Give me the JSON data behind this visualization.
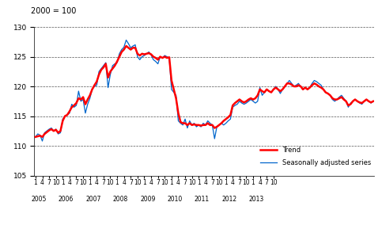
{
  "ylabel_text": "2000 = 100",
  "ylim": [
    105,
    130
  ],
  "yticks": [
    105,
    110,
    115,
    120,
    125,
    130
  ],
  "trend_color": "#FF0000",
  "seasonal_color": "#0066CC",
  "trend_lw": 1.8,
  "seasonal_lw": 0.9,
  "legend_trend": "Trend",
  "legend_seasonal": "Seasonally adjusted series",
  "background_color": "#FFFFFF",
  "grid_color": "#555555",
  "start_year": 2005,
  "seasonal_values": [
    111.5,
    112.0,
    111.8,
    110.8,
    112.2,
    112.5,
    112.8,
    113.0,
    112.5,
    112.8,
    112.0,
    112.2,
    114.5,
    115.0,
    115.2,
    115.5,
    117.0,
    116.5,
    116.8,
    119.2,
    117.5,
    117.8,
    115.5,
    117.0,
    118.0,
    119.5,
    120.0,
    120.2,
    122.5,
    123.0,
    123.5,
    124.0,
    119.8,
    122.0,
    123.5,
    123.8,
    124.0,
    125.5,
    126.2,
    126.6,
    127.8,
    127.2,
    126.5,
    126.8,
    127.0,
    125.0,
    124.5,
    125.0,
    125.2,
    125.5,
    125.8,
    125.3,
    124.5,
    124.2,
    123.8,
    125.0,
    124.8,
    125.2,
    125.0,
    124.8,
    119.5,
    119.0,
    118.5,
    114.2,
    113.8,
    113.5,
    114.5,
    113.0,
    114.2,
    113.5,
    113.8,
    113.2,
    113.5,
    113.2,
    113.8,
    113.5,
    114.2,
    113.8,
    113.5,
    111.2,
    113.2,
    113.5,
    113.8,
    113.5,
    113.8,
    114.2,
    114.5,
    116.5,
    116.8,
    117.0,
    117.5,
    117.2,
    117.0,
    117.2,
    117.5,
    117.8,
    117.5,
    117.2,
    117.5,
    119.8,
    118.5,
    119.0,
    119.5,
    119.2,
    119.0,
    119.5,
    120.0,
    119.5,
    118.8,
    119.5,
    120.0,
    120.5,
    121.0,
    120.5,
    120.0,
    120.2,
    120.5,
    120.0,
    119.5,
    119.8,
    119.5,
    119.8,
    120.5,
    121.0,
    120.8,
    120.5,
    120.2,
    119.5,
    119.0,
    118.8,
    118.5,
    117.8,
    117.5,
    117.8,
    118.2,
    118.5,
    118.0,
    117.5,
    116.5,
    117.2,
    117.5,
    117.8,
    117.5,
    117.2,
    117.0,
    117.5,
    117.8,
    117.5,
    117.2,
    117.5
  ],
  "trend_values": [
    111.5,
    111.6,
    111.7,
    111.5,
    112.0,
    112.3,
    112.6,
    112.8,
    112.5,
    112.7,
    112.2,
    112.5,
    114.2,
    115.0,
    115.2,
    115.8,
    116.5,
    116.8,
    117.2,
    118.0,
    117.8,
    118.2,
    117.0,
    117.8,
    118.5,
    119.5,
    120.2,
    120.8,
    122.0,
    122.8,
    123.2,
    123.8,
    121.5,
    122.5,
    123.0,
    123.5,
    124.2,
    125.0,
    125.8,
    126.2,
    126.8,
    126.5,
    126.2,
    126.5,
    126.5,
    125.5,
    125.2,
    125.5,
    125.4,
    125.5,
    125.6,
    125.4,
    125.0,
    124.8,
    124.5,
    125.0,
    124.8,
    125.0,
    124.8,
    124.9,
    121.0,
    119.5,
    118.0,
    115.5,
    114.0,
    113.8,
    113.8,
    113.5,
    113.8,
    113.5,
    113.6,
    113.5,
    113.5,
    113.4,
    113.5,
    113.5,
    113.8,
    113.5,
    113.5,
    113.0,
    113.2,
    113.5,
    113.8,
    114.2,
    114.5,
    114.8,
    115.2,
    116.8,
    117.2,
    117.5,
    117.8,
    117.5,
    117.3,
    117.5,
    117.8,
    118.0,
    117.8,
    118.0,
    118.5,
    119.5,
    119.2,
    119.0,
    119.5,
    119.2,
    119.0,
    119.5,
    119.8,
    119.5,
    119.2,
    119.5,
    120.0,
    120.5,
    120.5,
    120.3,
    120.0,
    120.0,
    120.2,
    120.0,
    119.5,
    119.8,
    119.5,
    119.8,
    120.2,
    120.5,
    120.3,
    120.0,
    119.8,
    119.5,
    119.0,
    118.8,
    118.5,
    118.0,
    117.8,
    117.8,
    118.0,
    118.2,
    117.8,
    117.5,
    116.8,
    117.0,
    117.5,
    117.8,
    117.5,
    117.3,
    117.2,
    117.5,
    117.8,
    117.5,
    117.3,
    117.5
  ]
}
